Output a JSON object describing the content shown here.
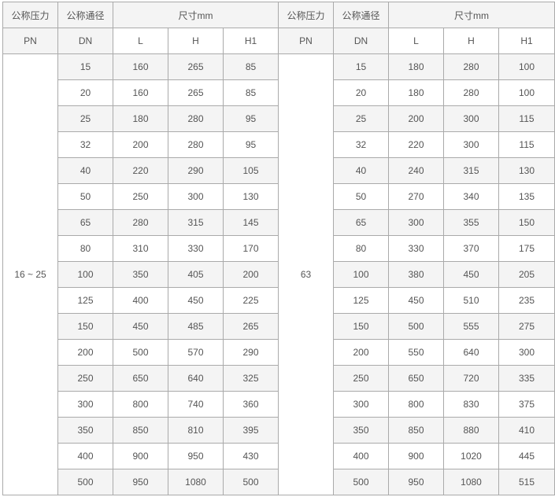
{
  "header": {
    "pn_label": "公称压力",
    "pn_sub": "PN",
    "dn_label": "公称通径",
    "dn_sub": "DN",
    "size_label": "尺寸mm",
    "cols": [
      "L",
      "H",
      "H1"
    ]
  },
  "groups": [
    {
      "pn": "16 ~ 25",
      "rows": [
        [
          "15",
          "160",
          "265",
          "85"
        ],
        [
          "20",
          "160",
          "265",
          "85"
        ],
        [
          "25",
          "180",
          "280",
          "95"
        ],
        [
          "32",
          "200",
          "280",
          "95"
        ],
        [
          "40",
          "220",
          "290",
          "105"
        ],
        [
          "50",
          "250",
          "300",
          "130"
        ],
        [
          "65",
          "280",
          "315",
          "145"
        ],
        [
          "80",
          "310",
          "330",
          "170"
        ],
        [
          "100",
          "350",
          "405",
          "200"
        ],
        [
          "125",
          "400",
          "450",
          "225"
        ],
        [
          "150",
          "450",
          "485",
          "265"
        ],
        [
          "200",
          "500",
          "570",
          "290"
        ],
        [
          "250",
          "650",
          "640",
          "325"
        ],
        [
          "300",
          "800",
          "740",
          "360"
        ],
        [
          "350",
          "850",
          "810",
          "395"
        ],
        [
          "400",
          "900",
          "950",
          "430"
        ],
        [
          "500",
          "950",
          "1080",
          "500"
        ]
      ]
    },
    {
      "pn": "63",
      "rows": [
        [
          "15",
          "180",
          "280",
          "100"
        ],
        [
          "20",
          "180",
          "280",
          "100"
        ],
        [
          "25",
          "200",
          "300",
          "115"
        ],
        [
          "32",
          "220",
          "300",
          "115"
        ],
        [
          "40",
          "240",
          "315",
          "130"
        ],
        [
          "50",
          "270",
          "340",
          "135"
        ],
        [
          "65",
          "300",
          "355",
          "150"
        ],
        [
          "80",
          "330",
          "370",
          "175"
        ],
        [
          "100",
          "380",
          "450",
          "205"
        ],
        [
          "125",
          "450",
          "510",
          "235"
        ],
        [
          "150",
          "500",
          "555",
          "275"
        ],
        [
          "200",
          "550",
          "640",
          "300"
        ],
        [
          "250",
          "650",
          "720",
          "335"
        ],
        [
          "300",
          "800",
          "830",
          "375"
        ],
        [
          "350",
          "850",
          "880",
          "410"
        ],
        [
          "400",
          "900",
          "1020",
          "445"
        ],
        [
          "500",
          "950",
          "1080",
          "515"
        ]
      ]
    }
  ]
}
